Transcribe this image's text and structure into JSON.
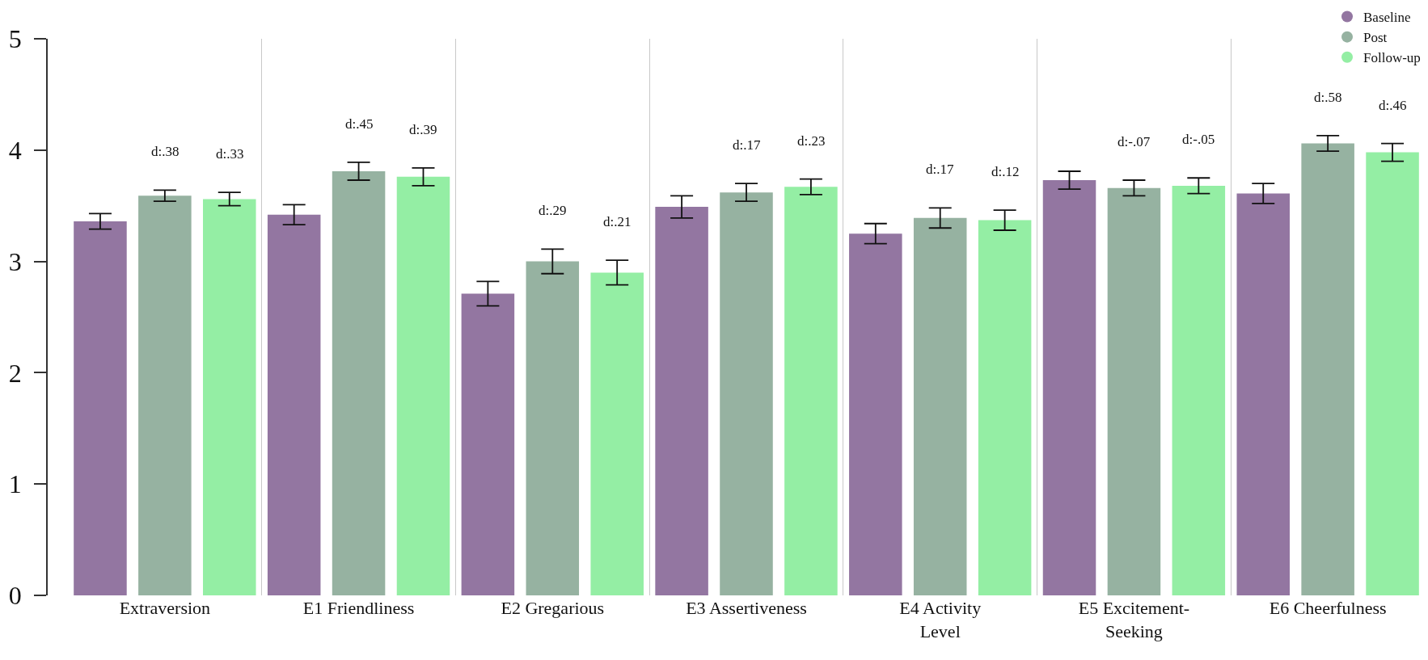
{
  "chart_data": {
    "type": "bar",
    "categories": [
      "Extraversion",
      "E1 Friendliness",
      "E2 Gregarious",
      "E3 Assertiveness",
      "E4 Activity Level",
      "E5 Excitement-Seeking",
      "E6 Cheerfulness"
    ],
    "series": [
      {
        "name": "Baseline",
        "color": "#9376a1",
        "values": [
          3.36,
          3.42,
          2.71,
          3.49,
          3.25,
          3.73,
          3.61
        ],
        "errors": [
          0.07,
          0.09,
          0.11,
          0.1,
          0.09,
          0.08,
          0.09
        ]
      },
      {
        "name": "Post",
        "color": "#96b2a1",
        "values": [
          3.59,
          3.81,
          3.0,
          3.62,
          3.39,
          3.66,
          4.06
        ],
        "errors": [
          0.05,
          0.08,
          0.11,
          0.08,
          0.09,
          0.07,
          0.07
        ]
      },
      {
        "name": "Follow-up",
        "color": "#94eea4",
        "values": [
          3.56,
          3.76,
          2.9,
          3.67,
          3.37,
          3.68,
          3.98
        ],
        "errors": [
          0.06,
          0.08,
          0.11,
          0.07,
          0.09,
          0.07,
          0.08
        ]
      }
    ],
    "annotations": [
      "d:.38",
      "d:.33",
      "d:.45",
      "d:.39",
      "d:.29",
      "d:.21",
      "d:.17",
      "d:.23",
      "d:.17",
      "d:.12",
      "d:-.07",
      "d:-.05",
      "d:.58",
      "d:.46"
    ],
    "ylim": [
      0,
      5
    ],
    "yticks": [
      0,
      1,
      2,
      3,
      4,
      5
    ],
    "grid": "x",
    "legend": "top right"
  }
}
